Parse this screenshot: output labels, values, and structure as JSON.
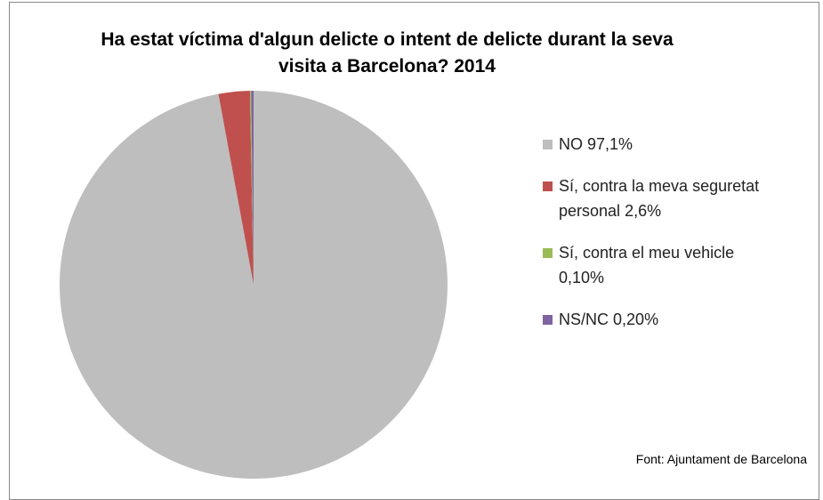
{
  "chart_data": {
    "type": "pie",
    "title": "Ha estat víctima d'algun delicte o intent de delicte durant la seva visita a Barcelona? 2014",
    "categories": [
      "NO",
      "Sí, contra la meva seguretat personal",
      "Sí, contra el meu vehicle",
      "NS/NC"
    ],
    "values": [
      97.1,
      2.6,
      0.1,
      0.2
    ],
    "value_labels": [
      "97,1%",
      "2,6%",
      "0,10%",
      "0,20%"
    ],
    "colors": [
      "#bebebe",
      "#c0504d",
      "#9bbb59",
      "#8064a2"
    ],
    "source": "Font: Ajuntament de Barcelona",
    "legend": "right"
  }
}
